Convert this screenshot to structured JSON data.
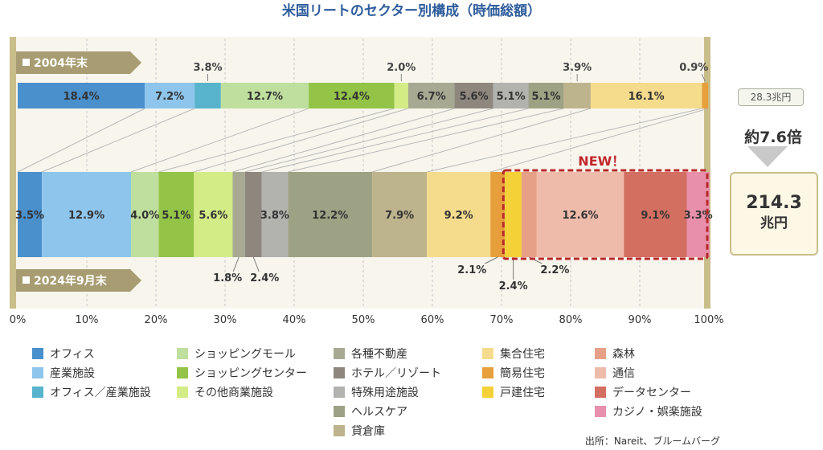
{
  "title": "米国リートのセクター別構成（時価総額）",
  "new_label": "NEW！",
  "source": "出所：Nareit、ブルームバーグ",
  "totals": {
    "from": "28.3兆円",
    "multiplier": "約7.6倍",
    "to_number": "214.3",
    "to_unit": "兆円"
  },
  "chart_data": {
    "type": "stacked_bar_horizontal",
    "title": "米国リートのセクター別構成（時価総額）",
    "xlim": [
      0,
      100
    ],
    "x_ticks": [
      "0%",
      "10%",
      "20%",
      "30%",
      "40%",
      "50%",
      "60%",
      "70%",
      "80%",
      "90%",
      "100%"
    ],
    "legend": [
      {
        "name": "オフィス",
        "color": "#4a90cc"
      },
      {
        "name": "産業施設",
        "color": "#8ec5ec"
      },
      {
        "name": "オフィス／産業施設",
        "color": "#57b4cc"
      },
      {
        "name": "ショッピングモール",
        "color": "#bfdf9e"
      },
      {
        "name": "ショッピングセンター",
        "color": "#93c447"
      },
      {
        "name": "その他商業施設",
        "color": "#d3ec86"
      },
      {
        "name": "各種不動産",
        "color": "#a7a992"
      },
      {
        "name": "ホテル／リゾート",
        "color": "#8e877d"
      },
      {
        "name": "特殊用途施設",
        "color": "#b2b2ae"
      },
      {
        "name": "ヘルスケア",
        "color": "#9ea284"
      },
      {
        "name": "貸倉庫",
        "color": "#bdb38d"
      },
      {
        "name": "集合住宅",
        "color": "#f5dc8d"
      },
      {
        "name": "簡易住宅",
        "color": "#e79f3c"
      },
      {
        "name": "戸建住宅",
        "color": "#f4d136"
      },
      {
        "name": "森林",
        "color": "#e5a087"
      },
      {
        "name": "通信",
        "color": "#eebbab"
      },
      {
        "name": "データセンター",
        "color": "#d36f61"
      },
      {
        "name": "カジノ・娯楽施設",
        "color": "#e88fab"
      }
    ],
    "series": [
      {
        "name": "2004年末",
        "segments": [
          {
            "sector": "オフィス",
            "value": 18.4,
            "label": "18.4%"
          },
          {
            "sector": "産業施設",
            "value": 7.2,
            "label": "7.2%"
          },
          {
            "sector": "オフィス／産業施設",
            "value": 3.8,
            "label": "3.8%"
          },
          {
            "sector": "ショッピングモール",
            "value": 12.7,
            "label": "12.7%"
          },
          {
            "sector": "ショッピングセンター",
            "value": 12.4,
            "label": "12.4%"
          },
          {
            "sector": "その他商業施設",
            "value": 2.0,
            "label": "2.0%"
          },
          {
            "sector": "各種不動産",
            "value": 6.7,
            "label": "6.7%"
          },
          {
            "sector": "ホテル／リゾート",
            "value": 5.6,
            "label": "5.6%"
          },
          {
            "sector": "特殊用途施設",
            "value": 5.1,
            "label": "5.1%"
          },
          {
            "sector": "ヘルスケア",
            "value": 5.1,
            "label": "5.1%"
          },
          {
            "sector": "貸倉庫",
            "value": 3.9,
            "label": "3.9%"
          },
          {
            "sector": "集合住宅",
            "value": 16.1,
            "label": "16.1%"
          },
          {
            "sector": "簡易住宅",
            "value": 0.9,
            "label": "0.9%"
          }
        ]
      },
      {
        "name": "2024年9月末",
        "segments": [
          {
            "sector": "オフィス",
            "value": 3.5,
            "label": "3.5%"
          },
          {
            "sector": "産業施設",
            "value": 12.9,
            "label": "12.9%"
          },
          {
            "sector": "ショッピングモール",
            "value": 4.0,
            "label": "4.0%"
          },
          {
            "sector": "ショッピングセンター",
            "value": 5.1,
            "label": "5.1%"
          },
          {
            "sector": "その他商業施設",
            "value": 5.6,
            "label": "5.6%"
          },
          {
            "sector": "各種不動産",
            "value": 1.8,
            "label": "1.8%"
          },
          {
            "sector": "ホテル／リゾート",
            "value": 2.4,
            "label": "2.4%"
          },
          {
            "sector": "特殊用途施設",
            "value": 3.8,
            "label": "3.8%"
          },
          {
            "sector": "ヘルスケア",
            "value": 12.2,
            "label": "12.2%"
          },
          {
            "sector": "貸倉庫",
            "value": 7.9,
            "label": "7.9%"
          },
          {
            "sector": "集合住宅",
            "value": 9.2,
            "label": "9.2%"
          },
          {
            "sector": "簡易住宅",
            "value": 2.1,
            "label": "2.1%"
          },
          {
            "sector": "戸建住宅",
            "value": 2.4,
            "label": "2.4%"
          },
          {
            "sector": "森林",
            "value": 2.2,
            "label": "2.2%"
          },
          {
            "sector": "通信",
            "value": 12.6,
            "label": "12.6%"
          },
          {
            "sector": "データセンター",
            "value": 9.1,
            "label": "9.1%"
          },
          {
            "sector": "カジノ・娯楽施設",
            "value": 3.3,
            "label": "3.3%"
          }
        ]
      }
    ]
  }
}
